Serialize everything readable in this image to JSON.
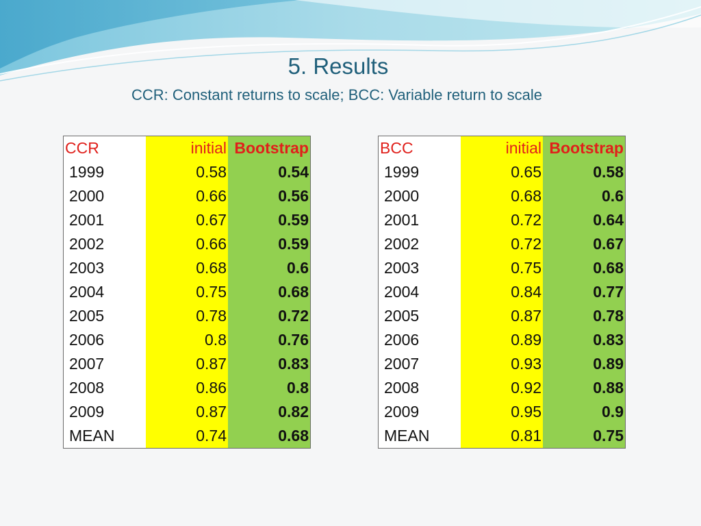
{
  "slide": {
    "title": "5. Results",
    "subtitle": "CCR: Constant returns to scale; BCC: Variable return to scale"
  },
  "ccr": {
    "headers": [
      "CCR",
      "initial",
      "Bootstrap"
    ],
    "rows": [
      [
        "1999",
        "0.58",
        "0.54"
      ],
      [
        "2000",
        "0.66",
        "0.56"
      ],
      [
        "2001",
        "0.67",
        "0.59"
      ],
      [
        "2002",
        "0.66",
        "0.59"
      ],
      [
        "2003",
        "0.68",
        "0.6"
      ],
      [
        "2004",
        "0.75",
        "0.68"
      ],
      [
        "2005",
        "0.78",
        "0.72"
      ],
      [
        "2006",
        "0.8",
        "0.76"
      ],
      [
        "2007",
        "0.87",
        "0.83"
      ],
      [
        "2008",
        "0.86",
        "0.8"
      ],
      [
        "2009",
        "0.87",
        "0.82"
      ],
      [
        "MEAN",
        "0.74",
        "0.68"
      ]
    ]
  },
  "bcc": {
    "headers": [
      "BCC",
      "initial",
      "Bootstrap"
    ],
    "rows": [
      [
        "1999",
        "0.65",
        "0.58"
      ],
      [
        "2000",
        "0.68",
        "0.6"
      ],
      [
        "2001",
        "0.72",
        "0.64"
      ],
      [
        "2002",
        "0.72",
        "0.67"
      ],
      [
        "2003",
        "0.75",
        "0.68"
      ],
      [
        "2004",
        "0.84",
        "0.77"
      ],
      [
        "2005",
        "0.87",
        "0.78"
      ],
      [
        "2006",
        "0.89",
        "0.83"
      ],
      [
        "2007",
        "0.93",
        "0.89"
      ],
      [
        "2008",
        "0.92",
        "0.88"
      ],
      [
        "2009",
        "0.95",
        "0.9"
      ],
      [
        "MEAN",
        "0.81",
        "0.75"
      ]
    ]
  },
  "colors": {
    "title": "#1f5f7a",
    "header_text": "#e0201b",
    "initial_fill": "#ffff00",
    "bootstrap_fill": "#92d050"
  }
}
